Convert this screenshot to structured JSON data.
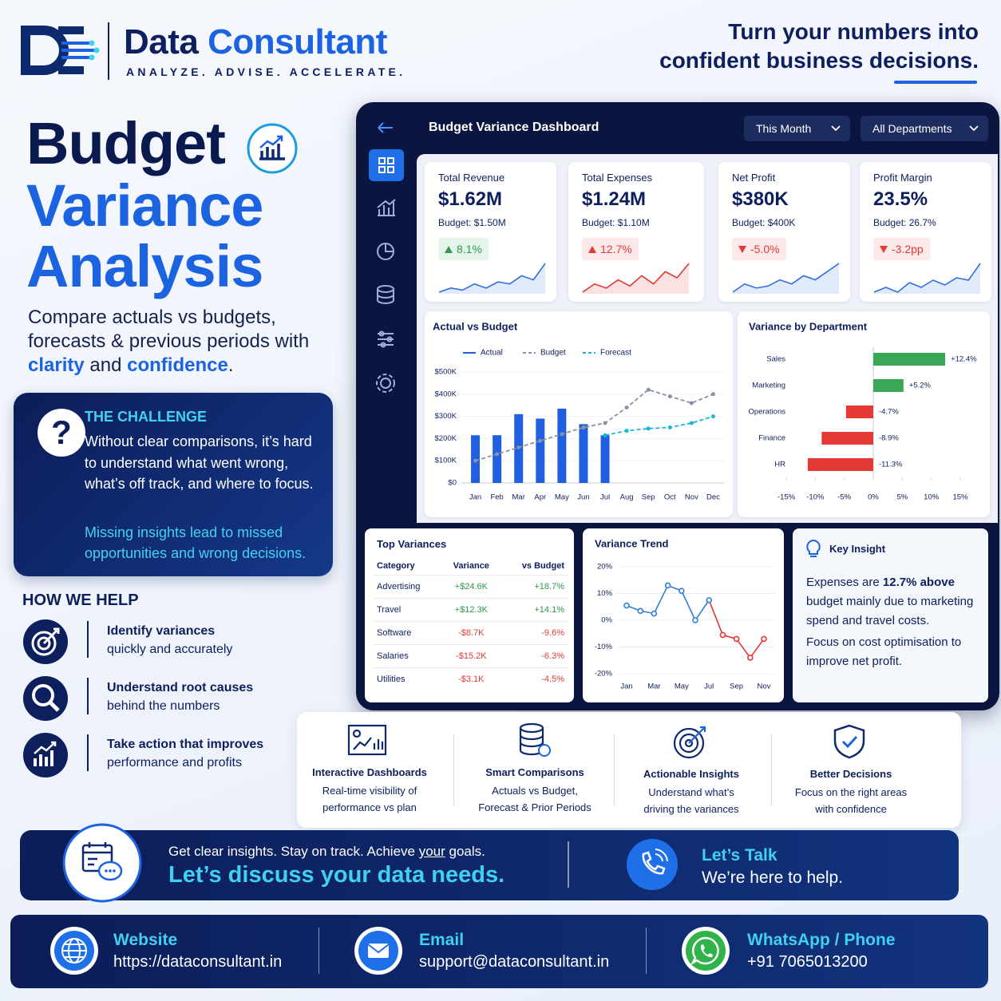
{
  "header": {
    "brand": [
      "Data",
      "Consultant"
    ],
    "tagline": "ANALYZE. ADVISE. ACCELERATE.",
    "headline": [
      "Turn your numbers into",
      "confident business decisions."
    ]
  },
  "hero": {
    "title": [
      "Budget",
      "Variance",
      "Analysis"
    ],
    "subtitle": [
      "Compare actuals vs budgets, forecasts & previous periods with ",
      "clarity",
      " and ",
      "confidence",
      "."
    ]
  },
  "challenge": {
    "icon": "?",
    "title": "THE CHALLENGE",
    "body": "Without clear comparisons, it’s hard to understand what went wrong, what’s off track, and where to focus.",
    "emphasis": "Missing insights lead to missed opportunities and wrong decisions."
  },
  "how_we_help": {
    "title": "HOW WE HELP",
    "items": [
      {
        "heading": "Identify variances",
        "text": "quickly and accurately"
      },
      {
        "heading": "Understand root causes",
        "text": "behind the numbers"
      },
      {
        "heading": "Take action that improves",
        "text": "performance and profits"
      }
    ]
  },
  "dashboard": {
    "title": "Budget Variance Dashboard",
    "filters": [
      "This Month",
      "All Departments"
    ],
    "kpis": [
      {
        "label": "Total Revenue",
        "value": "$1.62M",
        "budget": "Budget: $1.50M",
        "change": "8.1%",
        "direction": "up",
        "status": "good",
        "color": "#2f6fe0",
        "trend": [
          3,
          4,
          3.5,
          5,
          4,
          5.5,
          5,
          7,
          6,
          10
        ]
      },
      {
        "label": "Total Expenses",
        "value": "$1.24M",
        "budget": "Budget: $1.10M",
        "change": "12.7%",
        "direction": "up",
        "status": "bad",
        "color": "#e53935",
        "trend": [
          3,
          5,
          4,
          6,
          4.5,
          7,
          5,
          8,
          6.5,
          10
        ]
      },
      {
        "label": "Net Profit",
        "value": "$380K",
        "budget": "Budget: $400K",
        "change": "-5.0%",
        "direction": "down",
        "status": "bad",
        "color": "#2f6fe0",
        "trend": [
          3,
          5,
          4,
          4.5,
          6,
          5,
          7,
          6,
          8,
          10
        ]
      },
      {
        "label": "Profit Margin",
        "value": "23.5%",
        "budget": "Budget: 26.7%",
        "change": "-3.2pp",
        "direction": "down",
        "status": "bad",
        "color": "#2f6fe0",
        "trend": [
          4,
          5,
          4,
          6,
          5,
          6.5,
          5.5,
          7,
          6.5,
          10
        ]
      }
    ],
    "actual_vs_budget": {
      "type": "bar",
      "title": "Actual vs Budget",
      "categories": [
        "Jan",
        "Feb",
        "Mar",
        "Apr",
        "May",
        "Jun",
        "Jul",
        "Aug",
        "Sep",
        "Oct",
        "Nov",
        "Dec"
      ],
      "series": [
        {
          "name": "Actual",
          "type": "bar",
          "color": "#1f5fe0",
          "values": [
            215,
            215,
            310,
            290,
            335,
            265,
            215,
            null,
            null,
            null,
            null,
            null
          ]
        },
        {
          "name": "Budget",
          "type": "line",
          "dash": true,
          "color": "#8a93a6",
          "values": [
            100,
            130,
            160,
            190,
            220,
            250,
            270,
            340,
            420,
            390,
            360,
            400
          ]
        },
        {
          "name": "Forecast",
          "type": "line",
          "dash": true,
          "color": "#18b8d8",
          "values": [
            null,
            null,
            null,
            null,
            null,
            null,
            215,
            235,
            245,
            250,
            270,
            300
          ]
        }
      ],
      "ylim": [
        0,
        500
      ],
      "yticks": [
        {
          "value": 0,
          "label": "$0"
        },
        {
          "value": 100,
          "label": "$100K"
        },
        {
          "value": 200,
          "label": "$200K"
        },
        {
          "value": 300,
          "label": "$300K"
        },
        {
          "value": 400,
          "label": "$400K"
        },
        {
          "value": 500,
          "label": "$500K"
        }
      ],
      "grid": true
    },
    "variance_by_department": {
      "type": "hbar",
      "title": "Variance by Department",
      "categories": [
        "Sales",
        "Marketing",
        "Operations",
        "Finance",
        "HR"
      ],
      "values": [
        12.4,
        5.2,
        -4.7,
        -8.9,
        -11.3
      ],
      "value_labels": [
        "+12.4%",
        "+5.2%",
        "-4.7%",
        "-8.9%",
        "-11.3%"
      ],
      "colors": {
        "positive": "#3aa757",
        "negative": "#e53935"
      },
      "xlim": [
        -15,
        15
      ],
      "xticks": [
        {
          "value": -15,
          "label": "-15%"
        },
        {
          "value": -10,
          "label": "-10%"
        },
        {
          "value": -5,
          "label": "-5%"
        },
        {
          "value": 0,
          "label": "0%"
        },
        {
          "value": 5,
          "label": "5%"
        },
        {
          "value": 10,
          "label": "10%"
        },
        {
          "value": 15,
          "label": "15%"
        }
      ]
    },
    "top_variances": {
      "title": "Top Variances",
      "columns": [
        "Category",
        "Variance",
        "vs Budget"
      ],
      "rows": [
        [
          "Advertising",
          "+$24.6K",
          "+18.7%"
        ],
        [
          "Travel",
          "+$12.3K",
          "+14.1%"
        ],
        [
          "Software",
          "-$8.7K",
          "-9.6%"
        ],
        [
          "Salaries",
          "-$15.2K",
          "-6.3%"
        ],
        [
          "Utilities",
          "-$3.1K",
          "-4.5%"
        ]
      ]
    },
    "variance_trend": {
      "type": "line",
      "title": "Variance Trend",
      "categories": [
        "Jan",
        null,
        "Mar",
        null,
        "May",
        null,
        "Jul",
        null,
        "Sep",
        null,
        "Nov"
      ],
      "values": [
        5.5,
        3.5,
        2.5,
        13,
        11,
        0,
        7.5,
        -5.5,
        -7,
        -14,
        -7
      ],
      "color": "#2f7fd6",
      "negative_color": "#e53935",
      "ylim": [
        -20,
        20
      ],
      "yticks": [
        {
          "value": 20,
          "label": "20%"
        },
        {
          "value": 10,
          "label": "10%"
        },
        {
          "value": 0,
          "label": "0%"
        },
        {
          "value": -10,
          "label": "-10%"
        },
        {
          "value": -20,
          "label": "-20%"
        }
      ],
      "grid": true
    },
    "key_insight": {
      "title": "Key Insight",
      "body": [
        "Expenses are ",
        "12.7% above",
        " budget mainly due to marketing spend and travel costs."
      ],
      "note": "Focus on cost optimisation to improve net profit."
    }
  },
  "features": [
    {
      "title": "Interactive Dashboards",
      "text": [
        "Real-time visibility of",
        "performance vs plan"
      ]
    },
    {
      "title": "Smart Comparisons",
      "text": [
        "Actuals vs Budget,",
        "Forecast & Prior Periods"
      ]
    },
    {
      "title": "Actionable Insights",
      "text": [
        "Understand what’s",
        "driving the variances"
      ]
    },
    {
      "title": "Better Decisions",
      "text": [
        "Focus on the right areas",
        "with confidence"
      ]
    }
  ],
  "cta": {
    "lead": [
      "Get clear insights. Stay on track. Achieve ",
      "your",
      " goals."
    ],
    "headline": "Let’s discuss your data needs.",
    "contact_title": "Let’s Talk",
    "contact_text": "We’re here to help."
  },
  "contacts": [
    {
      "label": "Website",
      "value": "https://dataconsultant.in"
    },
    {
      "label": "Email",
      "value": "support@dataconsultant.in"
    },
    {
      "label": "WhatsApp / Phone",
      "value": "+91 7065013200"
    }
  ]
}
